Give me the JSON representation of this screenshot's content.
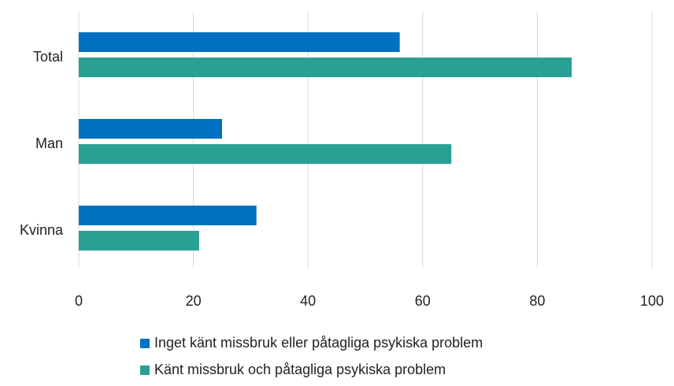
{
  "chart_data": {
    "type": "bar",
    "orientation": "horizontal",
    "categories": [
      "Total",
      "Man",
      "Kvinna"
    ],
    "series": [
      {
        "name": "Inget känt missbruk eller påtagliga psykiska problem",
        "color": "#0070c0",
        "values": [
          56,
          25,
          31
        ]
      },
      {
        "name": "Känt missbruk och påtagliga psykiska problem",
        "color": "#29a094",
        "values": [
          86,
          65,
          21
        ]
      }
    ],
    "xlim": [
      0,
      100
    ],
    "xticks": [
      0,
      20,
      40,
      60,
      80,
      100
    ],
    "grid": true,
    "legend": "bottom"
  }
}
